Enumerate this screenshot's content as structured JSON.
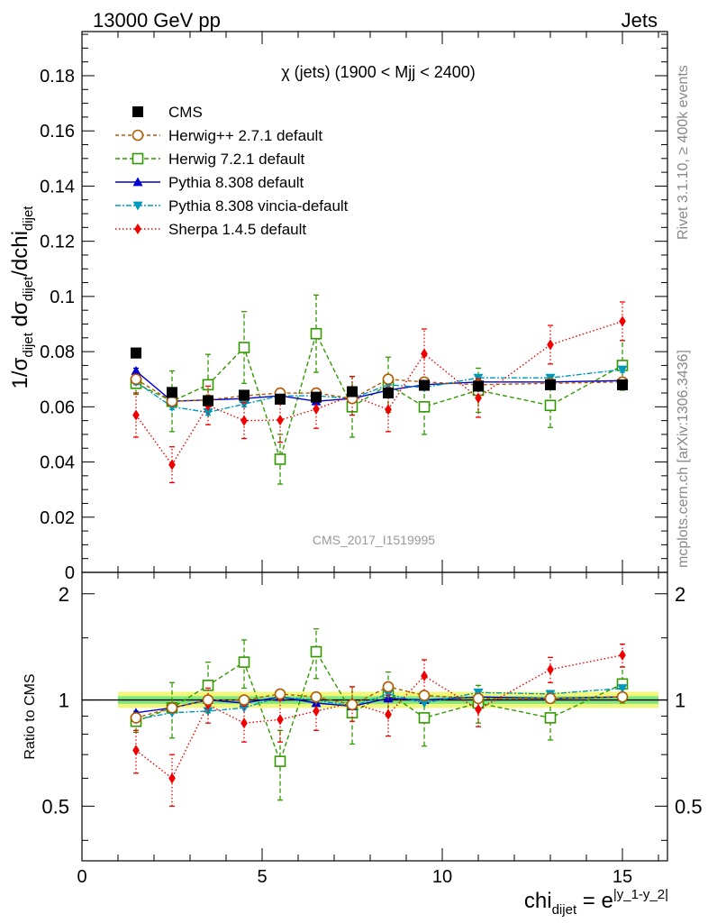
{
  "header": {
    "left": "13000 GeV pp",
    "right": "Jets"
  },
  "side_labels": {
    "rivet": "Rivet 3.1.10, ≥ 400k events",
    "mcplots": "mcplots.cern.ch [arXiv:1306.3436]"
  },
  "chart_data": {
    "type": "scatter",
    "title": "χ (jets) (1900 < Mjj < 2400)",
    "watermark": "CMS_2017_I1519995",
    "ylabel_parts": [
      "1/σ",
      "dijet",
      " dσ",
      "dijet",
      "/dchi",
      "dijet"
    ],
    "xlabel_parts": [
      "chi",
      "dijet",
      " = e",
      "|y_1-y_2|"
    ],
    "ratio_ylabel": "Ratio to CMS",
    "xlim": [
      0,
      16.25
    ],
    "ylim": [
      0,
      0.196
    ],
    "ratio_ylim": [
      0.35,
      2.3
    ],
    "xticks": [
      0,
      5,
      10,
      15
    ],
    "xtick_labels": [
      "0",
      "5",
      "10",
      "15"
    ],
    "yticks": [
      0,
      0.02,
      0.04,
      0.06,
      0.08,
      0.1,
      0.12,
      0.14,
      0.16,
      0.18
    ],
    "ytick_labels": [
      "0",
      "0.02",
      "0.04",
      "0.06",
      "0.08",
      "0.1",
      "0.12",
      "0.14",
      "0.16",
      "0.18"
    ],
    "ratio_yticks": [
      0.5,
      1,
      2
    ],
    "ratio_ytick_labels": [
      "0.5",
      "1",
      "2"
    ],
    "x": [
      1.5,
      2.5,
      3.5,
      4.5,
      5.5,
      6.5,
      7.5,
      8.5,
      9.5,
      11,
      13,
      15
    ],
    "band_x": [
      1.0,
      16.0
    ],
    "series": [
      {
        "name": "CMS",
        "color": "#000000",
        "marker": "square-filled",
        "dash": "",
        "values": [
          0.0795,
          0.0652,
          0.0622,
          0.0642,
          0.0628,
          0.0635,
          0.0655,
          0.065,
          0.0678,
          0.0675,
          0.068,
          0.068
        ],
        "errors": [
          0.0015,
          0.001,
          0.001,
          0.001,
          0.001,
          0.001,
          0.001,
          0.001,
          0.001,
          0.001,
          0.001,
          0.001
        ],
        "ratio": [
          1,
          1,
          1,
          1,
          1,
          1,
          1,
          1,
          1,
          1,
          1,
          1
        ]
      },
      {
        "name": "Herwig++ 2.7.1 default",
        "color": "#b35900",
        "marker": "circle-open",
        "dash": "4,3",
        "values": [
          0.07,
          0.062,
          0.0625,
          0.064,
          0.065,
          0.065,
          0.063,
          0.07,
          0.069,
          0.068,
          0.0685,
          0.069
        ],
        "errors": [
          0.001,
          0.001,
          0.001,
          0.001,
          0.001,
          0.001,
          0.001,
          0.0015,
          0.0015,
          0.0015,
          0.0015,
          0.0015
        ],
        "ratio": [
          0.89,
          0.95,
          1.0,
          1.0,
          1.04,
          1.02,
          0.97,
          1.09,
          1.03,
          1.01,
          1.01,
          1.02
        ]
      },
      {
        "name": "Herwig 7.2.1 default",
        "color": "#339900",
        "marker": "square-open",
        "dash": "5,3",
        "values": [
          0.0685,
          0.062,
          0.068,
          0.0815,
          0.041,
          0.0865,
          0.06,
          0.068,
          0.06,
          0.066,
          0.0605,
          0.075
        ],
        "errors": [
          0.004,
          0.011,
          0.011,
          0.013,
          0.009,
          0.014,
          0.011,
          0.01,
          0.01,
          0.008,
          0.008,
          0.009
        ],
        "ratio": [
          0.87,
          0.95,
          1.1,
          1.28,
          0.67,
          1.37,
          0.92,
          1.05,
          0.89,
          0.98,
          0.89,
          1.11
        ]
      },
      {
        "name": "Pythia 8.308 default",
        "color": "#0000cc",
        "marker": "triangle-up",
        "dash": "",
        "values": [
          0.073,
          0.062,
          0.0625,
          0.063,
          0.064,
          0.062,
          0.063,
          0.066,
          0.068,
          0.069,
          0.069,
          0.0695
        ],
        "errors": [
          0.001,
          0.001,
          0.001,
          0.001,
          0.001,
          0.001,
          0.001,
          0.001,
          0.001,
          0.001,
          0.001,
          0.001
        ],
        "ratio": [
          0.92,
          0.95,
          1.0,
          0.98,
          1.02,
          0.98,
          0.96,
          1.01,
          1.0,
          1.02,
          1.01,
          1.02
        ]
      },
      {
        "name": "Pythia 8.308 vincia-default",
        "color": "#0099bb",
        "marker": "triangle-down",
        "dash": "6,2,2,2",
        "values": [
          0.069,
          0.06,
          0.058,
          0.061,
          0.064,
          0.064,
          0.063,
          0.068,
          0.067,
          0.0705,
          0.0705,
          0.0735
        ],
        "errors": [
          0.001,
          0.001,
          0.001,
          0.001,
          0.001,
          0.001,
          0.001,
          0.001,
          0.001,
          0.001,
          0.001,
          0.001
        ],
        "ratio": [
          0.88,
          0.92,
          0.93,
          0.95,
          1.02,
          1.0,
          0.96,
          1.04,
          0.98,
          1.05,
          1.04,
          1.08
        ]
      },
      {
        "name": "Sherpa 1.4.5 default",
        "color": "#ee0000",
        "marker": "diamond",
        "dash": "1.5,2.5",
        "values": [
          0.057,
          0.039,
          0.0605,
          0.055,
          0.0552,
          0.0592,
          0.064,
          0.059,
          0.0792,
          0.0632,
          0.0825,
          0.091
        ],
        "errors": [
          0.008,
          0.0065,
          0.007,
          0.0065,
          0.008,
          0.007,
          0.007,
          0.008,
          0.009,
          0.007,
          0.007,
          0.007
        ],
        "ratio": [
          0.72,
          0.6,
          0.97,
          0.86,
          0.88,
          0.93,
          0.98,
          0.91,
          1.17,
          0.94,
          1.22,
          1.34
        ]
      }
    ],
    "ratio_errors": {
      "Herwig 7.2.1 default": [
        0.06,
        0.17,
        0.18,
        0.2,
        0.15,
        0.22,
        0.17,
        0.15,
        0.15,
        0.12,
        0.12,
        0.13
      ],
      "Sherpa 1.4.5 default": [
        0.1,
        0.1,
        0.11,
        0.1,
        0.12,
        0.11,
        0.11,
        0.12,
        0.13,
        0.1,
        0.1,
        0.1
      ]
    }
  }
}
